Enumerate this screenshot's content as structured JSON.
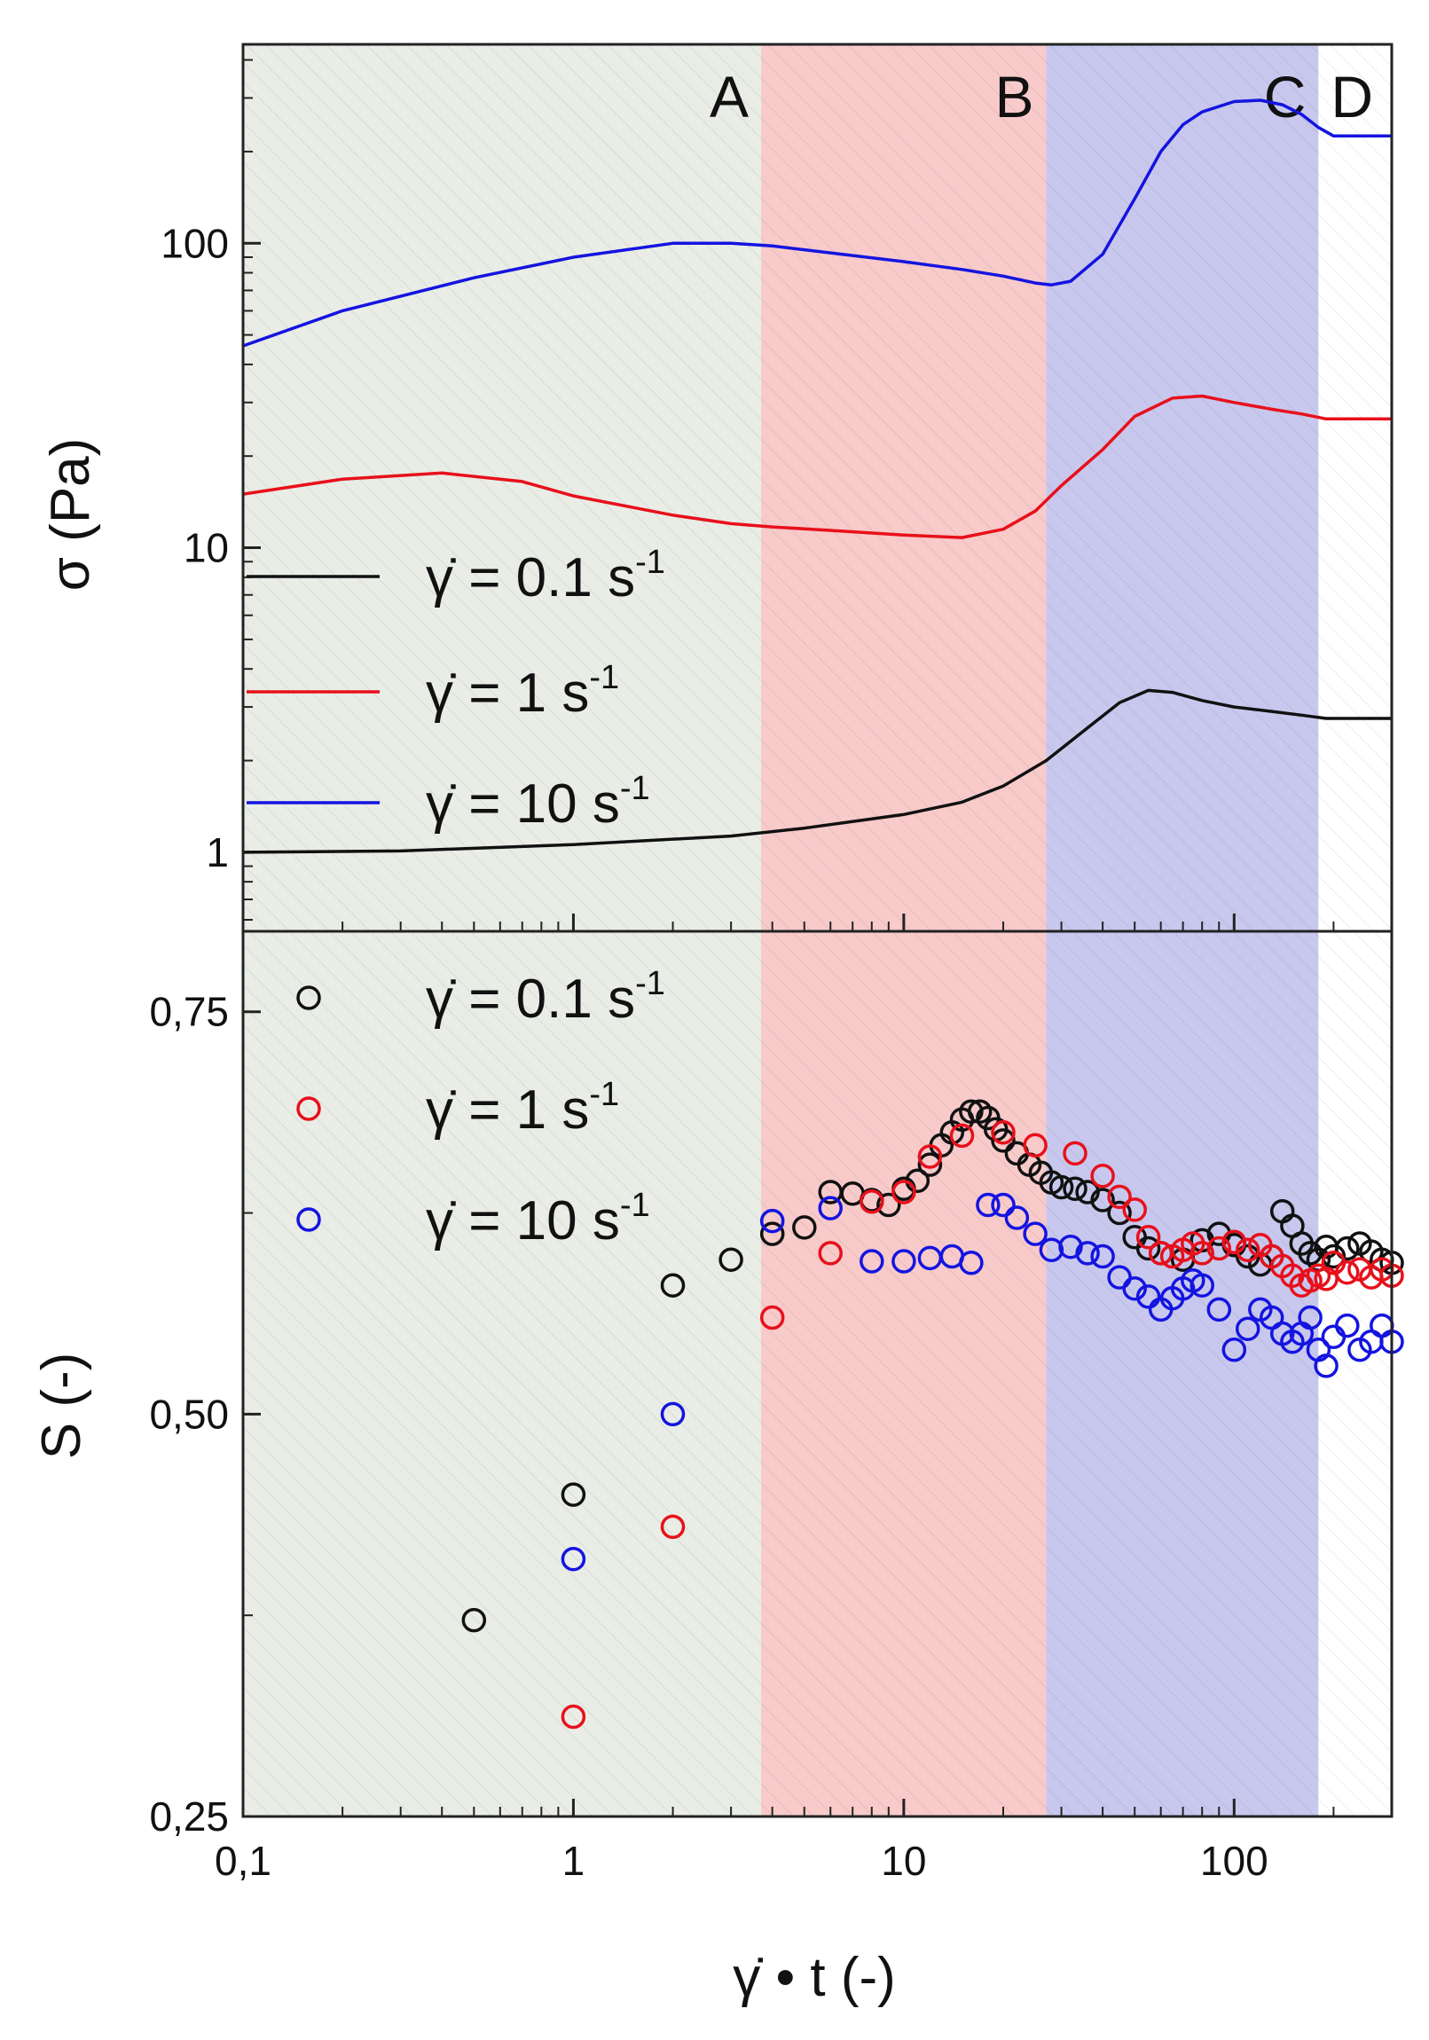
{
  "chart_data": [
    {
      "type": "line",
      "panel": "top",
      "xscale": "log",
      "yscale": "log",
      "xlim": [
        0.1,
        300
      ],
      "ylim": [
        0.55,
        450
      ],
      "ylabel": "σ (Pa)",
      "yticks": [
        1,
        10,
        100
      ],
      "ytick_labels": [
        "1",
        "10",
        "100"
      ],
      "regions": [
        {
          "label": "A",
          "x_start": 0.1,
          "x_end": 3.7,
          "color": "#e9ede6"
        },
        {
          "label": "B",
          "x_start": 3.7,
          "x_end": 27,
          "color": "#f8caca"
        },
        {
          "label": "C",
          "x_start": 27,
          "x_end": 180,
          "color": "#c8c8ee"
        },
        {
          "label": "D",
          "x_start": 180,
          "x_end": 300,
          "color": "#ffffff"
        }
      ],
      "legend": {
        "placement": "left",
        "entries": [
          {
            "prefix": "γ̇ = 0.1 s",
            "sup": "-1",
            "color": "#111111"
          },
          {
            "prefix": "γ̇ = 1 s",
            "sup": "-1",
            "color": "#e8101b"
          },
          {
            "prefix": "γ̇ = 10 s",
            "sup": "-1",
            "color": "#1414e0"
          }
        ]
      },
      "series": [
        {
          "name": "γ̇ = 0.1 s-1",
          "color": "#111111",
          "x": [
            0.1,
            0.3,
            1,
            3,
            5,
            10,
            15,
            20,
            27,
            35,
            45,
            55,
            65,
            80,
            100,
            130,
            160,
            190,
            300
          ],
          "y": [
            1.0,
            1.01,
            1.06,
            1.13,
            1.2,
            1.33,
            1.46,
            1.65,
            2.0,
            2.5,
            3.1,
            3.4,
            3.35,
            3.15,
            3.0,
            2.9,
            2.82,
            2.75,
            2.75
          ]
        },
        {
          "name": "γ̇ = 1 s-1",
          "color": "#e8101b",
          "x": [
            0.1,
            0.2,
            0.4,
            0.7,
            1,
            2,
            3,
            4,
            6,
            10,
            15,
            20,
            25,
            30,
            40,
            50,
            65,
            80,
            100,
            130,
            160,
            190,
            300
          ],
          "y": [
            15,
            16.8,
            17.6,
            16.5,
            14.8,
            12.8,
            12.0,
            11.7,
            11.4,
            11.0,
            10.8,
            11.5,
            13.2,
            16,
            21,
            27,
            31,
            31.5,
            30,
            28.5,
            27.5,
            26.5,
            26.5
          ]
        },
        {
          "name": "γ̇ = 10 s-1",
          "color": "#1414e0",
          "x": [
            0.1,
            0.2,
            0.5,
            1,
            2,
            3,
            4,
            6,
            10,
            15,
            20,
            25,
            28,
            32,
            40,
            50,
            60,
            70,
            80,
            100,
            120,
            140,
            160,
            180,
            200,
            300
          ],
          "y": [
            46,
            60,
            77,
            90,
            100,
            100,
            98,
            93,
            87,
            82,
            78,
            74,
            73,
            75,
            92,
            140,
            200,
            245,
            270,
            292,
            295,
            285,
            265,
            240,
            225,
            225
          ]
        }
      ]
    },
    {
      "type": "scatter",
      "panel": "bottom",
      "xscale": "log",
      "xlim": [
        0.1,
        300
      ],
      "ylim": [
        0.25,
        0.8
      ],
      "xlabel": "γ̇ • t (-)",
      "ylabel": "S (-)",
      "xticks": [
        0.1,
        1,
        10,
        100
      ],
      "xtick_labels": [
        "0,1",
        "1",
        "10",
        "100"
      ],
      "yticks": [
        0.25,
        0.5,
        0.75
      ],
      "ytick_labels": [
        "0,25",
        "0,50",
        "0,75"
      ],
      "legend": {
        "placement": "top-left",
        "entries": [
          {
            "prefix": "γ̇ = 0.1 s",
            "sup": "-1",
            "color": "#111111"
          },
          {
            "prefix": "γ̇ = 1 s",
            "sup": "-1",
            "color": "#e8101b"
          },
          {
            "prefix": "γ̇ = 10 s",
            "sup": "-1",
            "color": "#1414e0"
          }
        ]
      },
      "series": [
        {
          "name": "γ̇ = 0.1 s-1",
          "color": "#111111",
          "x": [
            0.5,
            1,
            2,
            3,
            4,
            5,
            6,
            7,
            8,
            9,
            10,
            11,
            12,
            13,
            14,
            15,
            16,
            17,
            18,
            19,
            20,
            22,
            24,
            26,
            28,
            30,
            33,
            36,
            40,
            45,
            50,
            55,
            60,
            70,
            80,
            90,
            100,
            110,
            120,
            130,
            140,
            150,
            160,
            170,
            180,
            190,
            200,
            220,
            240,
            260,
            280,
            300
          ],
          "y": [
            0.372,
            0.45,
            0.58,
            0.596,
            0.612,
            0.616,
            0.638,
            0.637,
            0.633,
            0.63,
            0.64,
            0.645,
            0.655,
            0.667,
            0.675,
            0.683,
            0.688,
            0.688,
            0.684,
            0.677,
            0.67,
            0.662,
            0.655,
            0.65,
            0.644,
            0.641,
            0.64,
            0.638,
            0.633,
            0.625,
            0.61,
            0.603,
            0.6,
            0.596,
            0.608,
            0.612,
            0.605,
            0.598,
            0.593,
            0.598,
            0.626,
            0.617,
            0.606,
            0.6,
            0.596,
            0.604,
            0.598,
            0.603,
            0.606,
            0.601,
            0.596,
            0.594
          ]
        },
        {
          "name": "γ̇ = 1 s-1",
          "color": "#e8101b",
          "x": [
            1,
            2,
            4,
            6,
            8,
            10,
            12,
            15,
            20,
            25,
            33,
            40,
            45,
            50,
            55,
            60,
            65,
            70,
            75,
            80,
            90,
            100,
            110,
            120,
            130,
            140,
            150,
            160,
            170,
            180,
            190,
            200,
            220,
            240,
            260,
            280,
            300
          ],
          "y": [
            0.312,
            0.43,
            0.56,
            0.6,
            0.632,
            0.638,
            0.66,
            0.673,
            0.675,
            0.667,
            0.662,
            0.648,
            0.635,
            0.627,
            0.61,
            0.6,
            0.598,
            0.602,
            0.606,
            0.6,
            0.603,
            0.607,
            0.602,
            0.605,
            0.598,
            0.592,
            0.586,
            0.58,
            0.583,
            0.586,
            0.584,
            0.594,
            0.588,
            0.59,
            0.585,
            0.59,
            0.586
          ]
        },
        {
          "name": "γ̇ = 10 s-1",
          "color": "#1414e0",
          "x": [
            1,
            2,
            4,
            6,
            8,
            10,
            12,
            14,
            16,
            18,
            20,
            22,
            25,
            28,
            32,
            36,
            40,
            45,
            50,
            55,
            60,
            65,
            70,
            75,
            80,
            90,
            100,
            110,
            120,
            130,
            140,
            150,
            160,
            170,
            180,
            190,
            200,
            220,
            240,
            260,
            280,
            300
          ],
          "y": [
            0.41,
            0.5,
            0.62,
            0.628,
            0.595,
            0.595,
            0.597,
            0.598,
            0.594,
            0.63,
            0.63,
            0.622,
            0.612,
            0.602,
            0.604,
            0.6,
            0.598,
            0.585,
            0.578,
            0.573,
            0.565,
            0.572,
            0.578,
            0.583,
            0.58,
            0.565,
            0.54,
            0.553,
            0.565,
            0.56,
            0.55,
            0.545,
            0.55,
            0.56,
            0.54,
            0.53,
            0.548,
            0.555,
            0.54,
            0.545,
            0.555,
            0.545
          ]
        }
      ]
    }
  ]
}
